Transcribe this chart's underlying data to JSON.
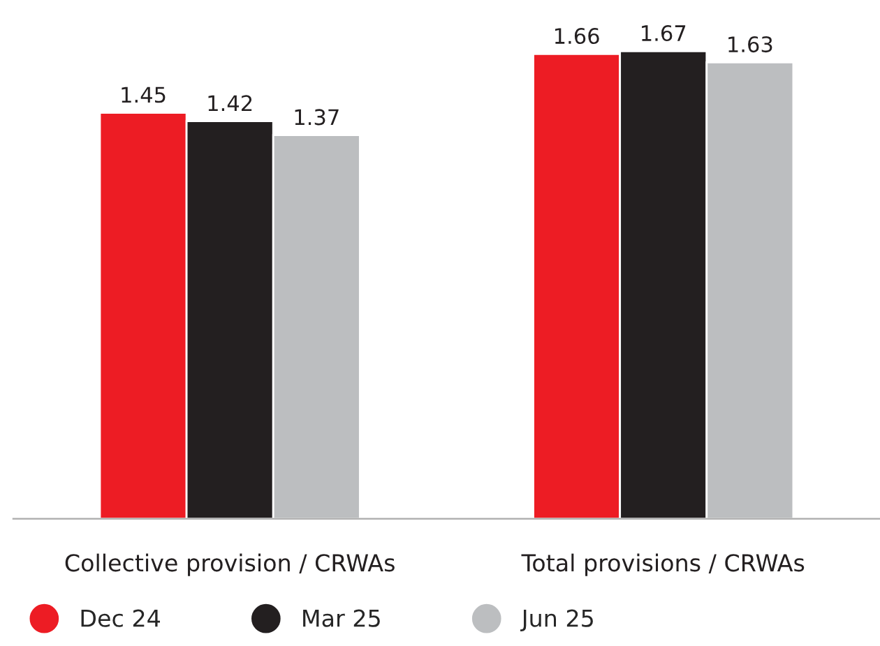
{
  "chart_data": {
    "type": "bar",
    "categories": [
      "Collective provision / CRWAs",
      "Total provisions / CRWAs"
    ],
    "series": [
      {
        "name": "Dec 24",
        "color": "#ed1c24",
        "values": [
          1.45,
          1.66
        ]
      },
      {
        "name": "Mar 25",
        "color": "#231f20",
        "values": [
          1.42,
          1.67
        ]
      },
      {
        "name": "Jun 25",
        "color": "#bcbec0",
        "values": [
          1.37,
          1.63
        ]
      }
    ],
    "data_labels": true,
    "legend": "bottom",
    "marker": "circle",
    "grid": false,
    "tick_labels": "x"
  }
}
